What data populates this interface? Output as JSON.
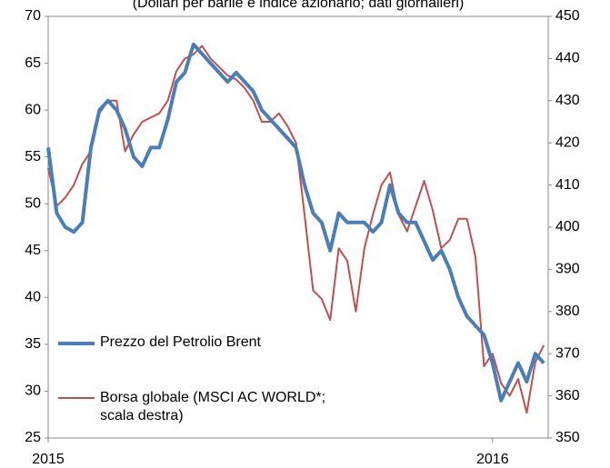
{
  "chart_data": {
    "type": "line",
    "title": "(Dollari per barile e indice azionario; dati giornalieri)",
    "categories": [
      "2015",
      null,
      null,
      null,
      null,
      null,
      null,
      null,
      null,
      null,
      null,
      null,
      null,
      null,
      null,
      null,
      null,
      null,
      null,
      null,
      null,
      null,
      null,
      null,
      null,
      null,
      null,
      null,
      null,
      null,
      null,
      null,
      null,
      null,
      null,
      null,
      null,
      null,
      null,
      null,
      null,
      null,
      null,
      null,
      null,
      null,
      null,
      null,
      null,
      null,
      null,
      null,
      "2016",
      null,
      null,
      null,
      null,
      null,
      null
    ],
    "series": [
      {
        "name": "Prezzo del Petrolio Brent",
        "color": "#4a7ebb",
        "values": [
          56,
          49,
          47.5,
          47,
          48,
          56,
          60,
          61,
          60,
          58,
          55,
          54,
          56,
          56,
          59,
          63,
          64,
          67,
          66,
          65,
          64,
          63,
          64,
          63,
          62,
          60,
          59,
          58,
          57,
          56,
          52,
          49,
          48,
          45,
          49,
          48,
          48,
          48,
          47,
          48,
          52,
          49,
          48,
          48,
          46,
          44,
          45,
          43,
          40,
          38,
          37,
          36,
          33,
          29,
          31,
          33,
          31,
          34,
          33
        ]
      },
      {
        "name": "Borsa globale (MSCI AC WORLD*;\nscala destra)",
        "color": "#c0504d",
        "axis": "y2",
        "values": [
          414,
          405,
          407,
          410,
          415,
          418,
          427,
          430,
          430,
          418,
          422,
          425,
          426,
          427,
          430,
          437,
          440,
          441,
          443,
          440,
          438,
          436,
          435,
          433,
          430,
          425,
          425,
          427,
          424,
          420,
          403,
          385,
          383,
          378,
          395,
          392,
          380,
          395,
          403,
          410,
          413,
          403,
          399,
          405,
          411,
          404,
          395,
          397,
          402,
          402,
          393,
          367,
          370,
          363,
          360,
          364,
          356,
          368,
          372
        ]
      }
    ],
    "ylim": [
      25,
      70
    ],
    "yticks": [
      25,
      30,
      35,
      40,
      45,
      50,
      55,
      60,
      65,
      70
    ],
    "y2lim": [
      350,
      450
    ],
    "y2ticks": [
      350,
      360,
      370,
      380,
      390,
      400,
      410,
      420,
      430,
      440,
      450
    ]
  }
}
